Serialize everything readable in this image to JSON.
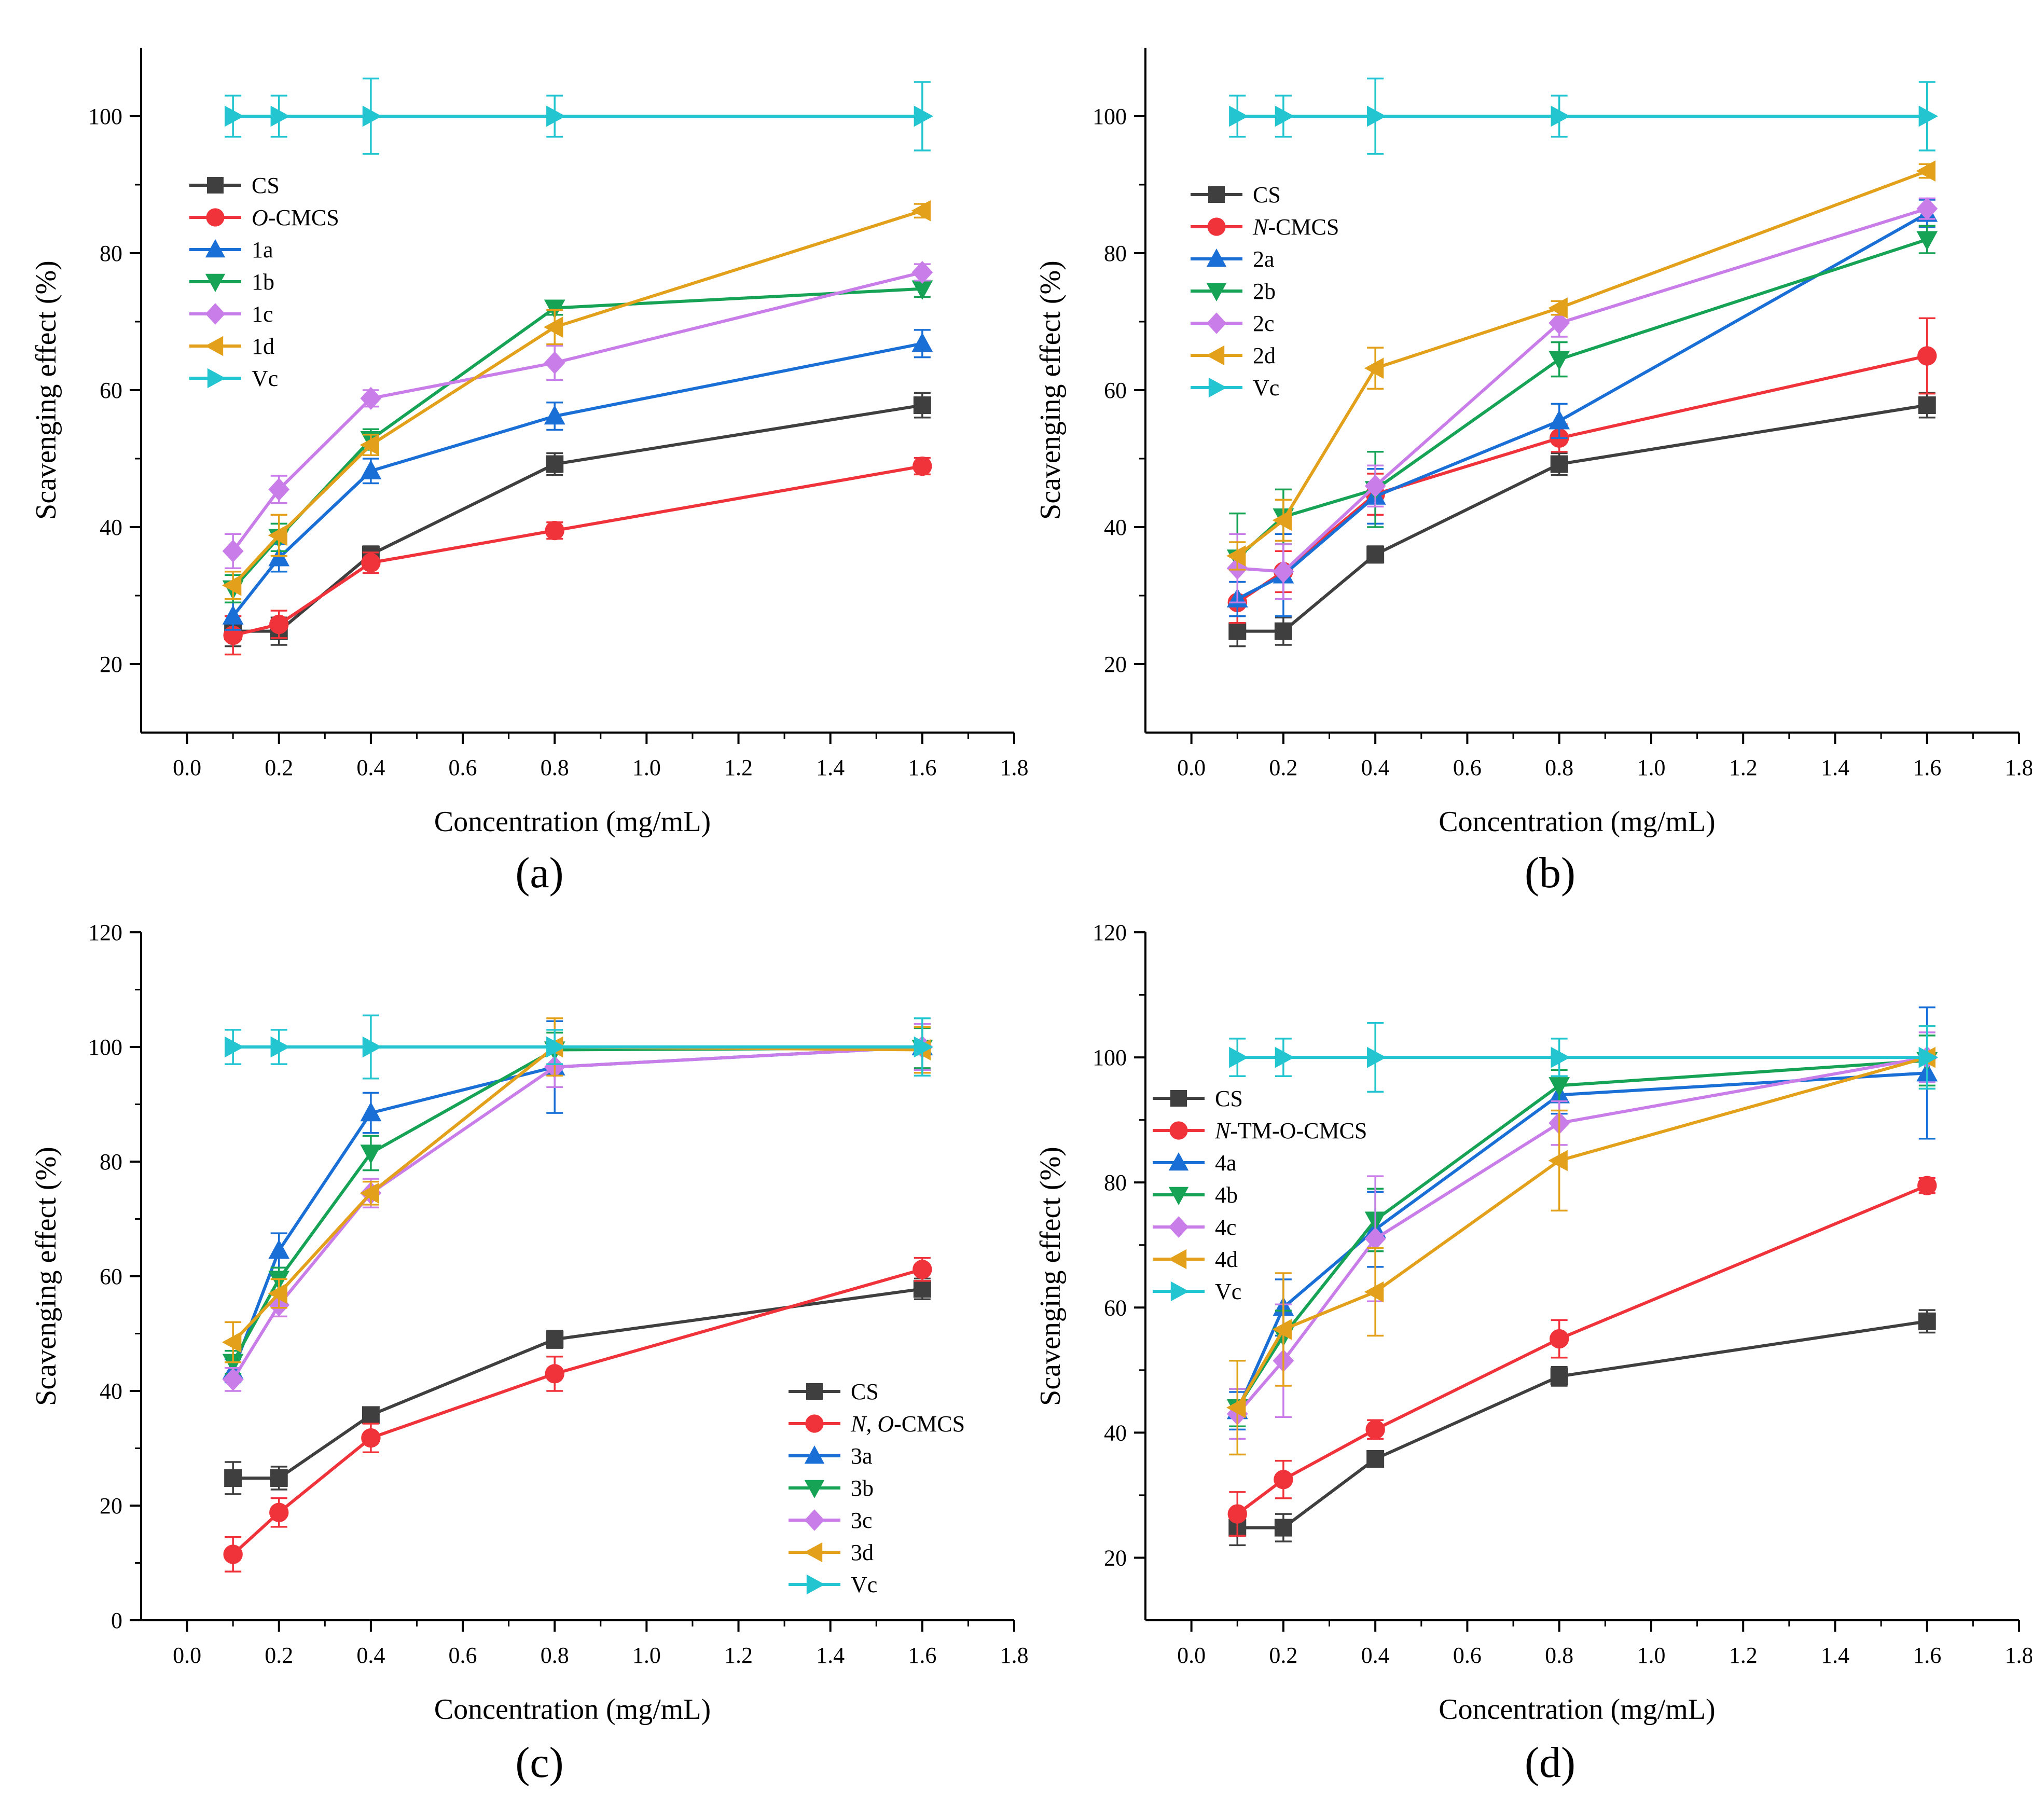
{
  "figure": {
    "panels_count": 4
  },
  "chart_data": [
    {
      "panel_label": "(a)",
      "type": "line",
      "xlabel": "Concentration (mg/mL)",
      "ylabel": "Scavenging effect (%)",
      "xlim": [
        -0.1,
        1.8
      ],
      "ylim": [
        10,
        110
      ],
      "x_ticks": [
        0.0,
        0.2,
        0.4,
        0.6,
        0.8,
        1.0,
        1.2,
        1.4,
        1.6,
        1.8
      ],
      "y_ticks": [
        20,
        40,
        60,
        80,
        100
      ],
      "legend_position": "top-left",
      "x": [
        0.1,
        0.2,
        0.4,
        0.8,
        1.6
      ],
      "series": [
        {
          "name": "CS",
          "italic_prefix": "",
          "plain": "CS",
          "color": "#3f3f3f",
          "marker": "square",
          "values": [
            24.8,
            24.8,
            36.0,
            49.2,
            57.8
          ],
          "errors": [
            2.2,
            2.0,
            1.2,
            1.6,
            1.8
          ]
        },
        {
          "name": "O-CMCS",
          "italic_prefix": "O",
          "plain": "-CMCS",
          "color": "#f0333a",
          "marker": "circle",
          "values": [
            24.2,
            25.8,
            34.8,
            39.5,
            48.9
          ],
          "errors": [
            2.8,
            2.0,
            1.5,
            1.2,
            1.2
          ]
        },
        {
          "name": "1a",
          "italic_prefix": "",
          "plain": "1a",
          "color": "#1a6fd6",
          "marker": "triangle-up",
          "values": [
            27.0,
            35.5,
            48.2,
            56.2,
            66.8
          ],
          "errors": [
            2.0,
            2.0,
            1.8,
            2.0,
            2.0
          ]
        },
        {
          "name": "1b",
          "italic_prefix": "",
          "plain": "1b",
          "color": "#17a356",
          "marker": "triangle-down",
          "values": [
            31.0,
            38.5,
            52.8,
            72.0,
            74.8
          ],
          "errors": [
            2.0,
            2.0,
            1.5,
            1.0,
            1.2
          ]
        },
        {
          "name": "1c",
          "italic_prefix": "",
          "plain": "1c",
          "color": "#c97de8",
          "marker": "diamond",
          "values": [
            36.5,
            45.5,
            58.8,
            64.0,
            77.2
          ],
          "errors": [
            2.5,
            2.0,
            1.2,
            2.5,
            1.2
          ]
        },
        {
          "name": "1d",
          "italic_prefix": "",
          "plain": "1d",
          "color": "#e3a01b",
          "marker": "triangle-left",
          "values": [
            31.5,
            38.8,
            52.0,
            69.2,
            86.2
          ],
          "errors": [
            2.0,
            3.0,
            1.5,
            2.5,
            1.0
          ]
        },
        {
          "name": "Vc",
          "italic_prefix": "",
          "plain": "Vc",
          "color": "#23c5d0",
          "marker": "triangle-right",
          "values": [
            100,
            100,
            100,
            100,
            100
          ],
          "errors": [
            3.0,
            3.0,
            5.5,
            3.0,
            5.0
          ]
        }
      ]
    },
    {
      "panel_label": "(b)",
      "type": "line",
      "xlabel": "Concentration (mg/mL)",
      "ylabel": "Scavenging effect (%)",
      "xlim": [
        -0.1,
        1.8
      ],
      "ylim": [
        10,
        110
      ],
      "x_ticks": [
        0.0,
        0.2,
        0.4,
        0.6,
        0.8,
        1.0,
        1.2,
        1.4,
        1.6,
        1.8
      ],
      "y_ticks": [
        20,
        40,
        60,
        80,
        100
      ],
      "legend_position": "top-left",
      "x": [
        0.1,
        0.2,
        0.4,
        0.8,
        1.6
      ],
      "series": [
        {
          "name": "CS",
          "italic_prefix": "",
          "plain": "CS",
          "color": "#3f3f3f",
          "marker": "square",
          "values": [
            24.8,
            24.8,
            36.0,
            49.2,
            57.8
          ],
          "errors": [
            2.2,
            2.0,
            1.2,
            1.6,
            1.8
          ]
        },
        {
          "name": "N-CMCS",
          "italic_prefix": "N",
          "plain": "-CMCS",
          "color": "#f0333a",
          "marker": "circle",
          "values": [
            29.0,
            33.5,
            44.8,
            53.0,
            65.0
          ],
          "errors": [
            3.0,
            3.0,
            3.0,
            2.0,
            5.5
          ]
        },
        {
          "name": "2a",
          "italic_prefix": "",
          "plain": "2a",
          "color": "#1a6fd6",
          "marker": "triangle-up",
          "values": [
            29.5,
            33.0,
            44.5,
            55.5,
            85.8
          ],
          "errors": [
            2.5,
            6.0,
            4.0,
            2.5,
            2.0
          ]
        },
        {
          "name": "2b",
          "italic_prefix": "",
          "plain": "2b",
          "color": "#17a356",
          "marker": "triangle-down",
          "values": [
            35.5,
            41.5,
            45.5,
            64.5,
            82.0
          ],
          "errors": [
            6.5,
            4.0,
            5.5,
            2.5,
            2.0
          ]
        },
        {
          "name": "2c",
          "italic_prefix": "",
          "plain": "2c",
          "color": "#c97de8",
          "marker": "diamond",
          "values": [
            34.0,
            33.5,
            46.0,
            69.8,
            86.5
          ],
          "errors": [
            5.0,
            4.0,
            3.0,
            2.0,
            1.5
          ]
        },
        {
          "name": "2d",
          "italic_prefix": "",
          "plain": "2d",
          "color": "#e3a01b",
          "marker": "triangle-left",
          "values": [
            35.8,
            41.0,
            63.2,
            72.0,
            92.0
          ],
          "errors": [
            2.0,
            3.0,
            3.0,
            1.0,
            1.0
          ]
        },
        {
          "name": "Vc",
          "italic_prefix": "",
          "plain": "Vc",
          "color": "#23c5d0",
          "marker": "triangle-right",
          "values": [
            100,
            100,
            100,
            100,
            100
          ],
          "errors": [
            3.0,
            3.0,
            5.5,
            3.0,
            5.0
          ]
        }
      ]
    },
    {
      "panel_label": "(c)",
      "type": "line",
      "xlabel": "Concentration (mg/mL)",
      "ylabel": "Scavenging effect (%)",
      "xlim": [
        -0.1,
        1.8
      ],
      "ylim": [
        0,
        120
      ],
      "x_ticks": [
        0.0,
        0.2,
        0.4,
        0.6,
        0.8,
        1.0,
        1.2,
        1.4,
        1.6,
        1.8
      ],
      "y_ticks": [
        0,
        20,
        40,
        60,
        80,
        100,
        120
      ],
      "legend_position": "bottom-right",
      "x": [
        0.1,
        0.2,
        0.4,
        0.8,
        1.6
      ],
      "series": [
        {
          "name": "CS",
          "italic_prefix": "",
          "plain": "CS",
          "color": "#3f3f3f",
          "marker": "square",
          "values": [
            24.8,
            24.8,
            35.8,
            49.0,
            57.8
          ],
          "errors": [
            2.8,
            2.0,
            1.2,
            1.5,
            1.8
          ]
        },
        {
          "name": "N, O-CMCS",
          "italic_prefix": "N, O",
          "plain": "-CMCS",
          "color": "#f0333a",
          "marker": "circle",
          "values": [
            11.5,
            18.8,
            31.8,
            43.0,
            61.2
          ],
          "errors": [
            3.0,
            2.5,
            2.5,
            3.0,
            2.0
          ]
        },
        {
          "name": "3a",
          "italic_prefix": "",
          "plain": "3a",
          "color": "#1a6fd6",
          "marker": "triangle-up",
          "values": [
            43.5,
            64.5,
            88.5,
            96.5,
            100.0
          ],
          "errors": [
            2.0,
            3.0,
            3.5,
            8.0,
            4.0
          ]
        },
        {
          "name": "3b",
          "italic_prefix": "",
          "plain": "3b",
          "color": "#17a356",
          "marker": "triangle-down",
          "values": [
            45.0,
            59.5,
            81.5,
            99.5,
            99.8
          ],
          "errors": [
            2.0,
            2.0,
            3.0,
            3.0,
            3.5
          ]
        },
        {
          "name": "3c",
          "italic_prefix": "",
          "plain": "3c",
          "color": "#c97de8",
          "marker": "diamond",
          "values": [
            42.0,
            55.0,
            74.5,
            96.5,
            100.0
          ],
          "errors": [
            2.0,
            2.0,
            2.5,
            3.5,
            4.0
          ]
        },
        {
          "name": "3d",
          "italic_prefix": "",
          "plain": "3d",
          "color": "#e3a01b",
          "marker": "triangle-left",
          "values": [
            48.5,
            57.0,
            74.5,
            100.0,
            99.5
          ],
          "errors": [
            3.5,
            2.5,
            2.0,
            5.0,
            4.0
          ]
        },
        {
          "name": "Vc",
          "italic_prefix": "",
          "plain": "Vc",
          "color": "#23c5d0",
          "marker": "triangle-right",
          "values": [
            100,
            100,
            100,
            100,
            100
          ],
          "errors": [
            3.0,
            3.0,
            5.5,
            3.0,
            5.0
          ]
        }
      ]
    },
    {
      "panel_label": "(d)",
      "type": "line",
      "xlabel": "Concentration (mg/mL)",
      "ylabel": "Scavenging effect (%)",
      "xlim": [
        -0.1,
        1.8
      ],
      "ylim": [
        10,
        120
      ],
      "x_ticks": [
        0.0,
        0.2,
        0.4,
        0.6,
        0.8,
        1.0,
        1.2,
        1.4,
        1.6,
        1.8
      ],
      "y_ticks": [
        20,
        40,
        60,
        80,
        100,
        120
      ],
      "legend_position": "middle-left",
      "x": [
        0.1,
        0.2,
        0.4,
        0.8,
        1.6
      ],
      "series": [
        {
          "name": "CS",
          "italic_prefix": "",
          "plain": "CS",
          "color": "#3f3f3f",
          "marker": "square",
          "values": [
            24.8,
            24.8,
            35.8,
            49.0,
            57.8
          ],
          "errors": [
            2.8,
            2.2,
            1.2,
            1.5,
            1.8
          ]
        },
        {
          "name": "N-TM-O-CMCS",
          "italic_prefix": "N",
          "plain": "-TM-O-CMCS",
          "color": "#f0333a",
          "marker": "circle",
          "values": [
            27.0,
            32.5,
            40.5,
            55.0,
            79.5
          ],
          "errors": [
            3.5,
            3.0,
            1.5,
            3.0,
            1.2
          ]
        },
        {
          "name": "4a",
          "italic_prefix": "",
          "plain": "4a",
          "color": "#1a6fd6",
          "marker": "triangle-up",
          "values": [
            43.5,
            60.0,
            72.5,
            94.0,
            97.5
          ],
          "errors": [
            3.0,
            4.5,
            6.0,
            3.0,
            10.5
          ]
        },
        {
          "name": "4b",
          "italic_prefix": "",
          "plain": "4b",
          "color": "#17a356",
          "marker": "triangle-down",
          "values": [
            44.0,
            55.5,
            74.0,
            95.5,
            99.5
          ],
          "errors": [
            3.0,
            4.0,
            5.0,
            2.5,
            4.0
          ]
        },
        {
          "name": "4c",
          "italic_prefix": "",
          "plain": "4c",
          "color": "#c97de8",
          "marker": "diamond",
          "values": [
            43.0,
            51.5,
            71.0,
            89.5,
            100.0
          ],
          "errors": [
            4.0,
            9.0,
            10.0,
            3.5,
            4.0
          ]
        },
        {
          "name": "4d",
          "italic_prefix": "",
          "plain": "4d",
          "color": "#e3a01b",
          "marker": "triangle-left",
          "values": [
            44.0,
            56.5,
            62.5,
            83.5,
            100.0
          ],
          "errors": [
            7.5,
            9.0,
            7.0,
            8.0,
            5.0
          ]
        },
        {
          "name": "Vc",
          "italic_prefix": "",
          "plain": "Vc",
          "color": "#23c5d0",
          "marker": "triangle-right",
          "values": [
            100,
            100,
            100,
            100,
            100
          ],
          "errors": [
            3.0,
            3.0,
            5.5,
            3.0,
            5.0
          ]
        }
      ]
    }
  ]
}
